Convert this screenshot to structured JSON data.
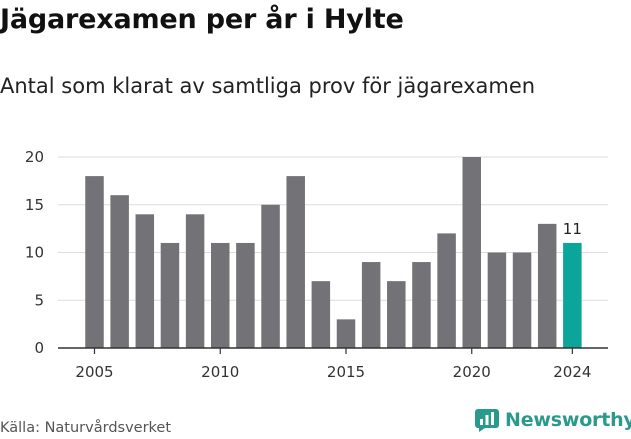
{
  "header": {
    "title": "Jägarexamen per år i Hylte",
    "subtitle": "Antal som klarat av samtliga prov för jägarexamen"
  },
  "footer": {
    "source": "Källa: Naturvårdsverket",
    "brand": "Newsworthy"
  },
  "colors": {
    "bar": "#737276",
    "highlight": "#0ba59a",
    "grid": "#dddddd",
    "axis": "#333333",
    "brand": "#2a9a8c"
  },
  "chart_data": {
    "type": "bar",
    "title": "Jägarexamen per år i Hylte",
    "subtitle": "Antal som klarat av samtliga prov för jägarexamen",
    "xlabel": "",
    "ylabel": "",
    "categories": [
      2005,
      2006,
      2007,
      2008,
      2009,
      2010,
      2011,
      2012,
      2013,
      2014,
      2015,
      2016,
      2017,
      2018,
      2019,
      2020,
      2021,
      2022,
      2023,
      2024
    ],
    "values": [
      18,
      16,
      14,
      11,
      14,
      11,
      11,
      15,
      18,
      7,
      3,
      9,
      7,
      9,
      12,
      20,
      10,
      10,
      13,
      11
    ],
    "ylim": [
      0,
      20
    ],
    "yticks": [
      0,
      5,
      10,
      15,
      20
    ],
    "xticks": [
      2005,
      2010,
      2015,
      2020,
      2024
    ],
    "highlight_category": 2024,
    "annotations": [
      {
        "category": 2024,
        "text": "11"
      }
    ],
    "grid": true,
    "legend": "none"
  }
}
